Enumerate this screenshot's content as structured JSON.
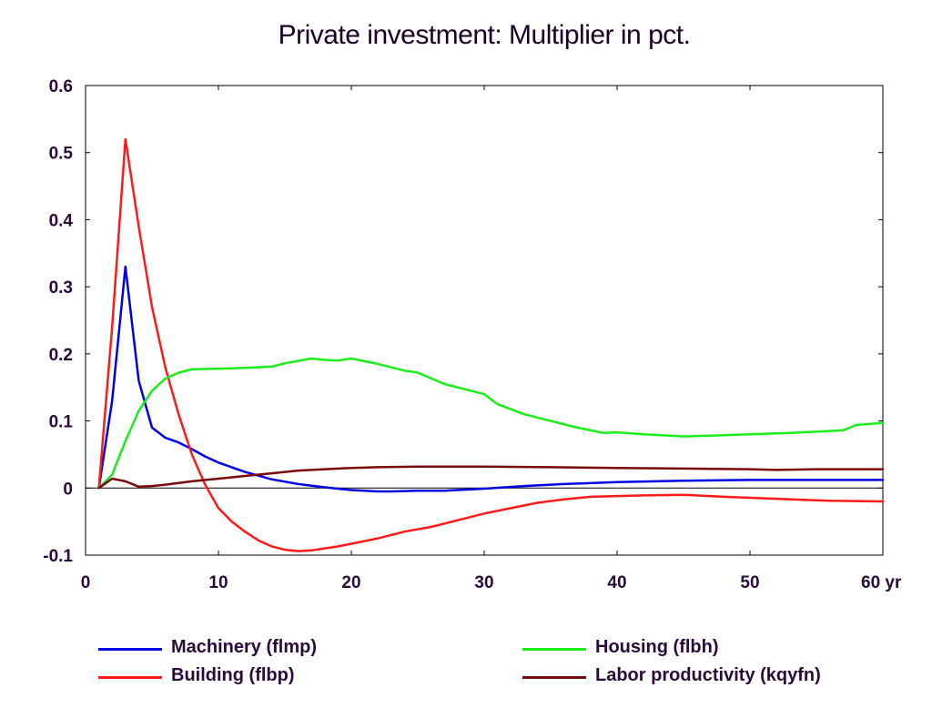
{
  "chart_data": {
    "type": "line",
    "title": "Private investment: Multiplier in pct.",
    "xlabel": "",
    "ylabel": "",
    "x_unit_label": "yr",
    "xlim": [
      0,
      60
    ],
    "ylim": [
      -0.1,
      0.6
    ],
    "x_ticks": [
      0,
      10,
      20,
      30,
      40,
      50,
      60
    ],
    "x_tick_labels": [
      "0",
      "10",
      "20",
      "30",
      "40",
      "50",
      "60 yr"
    ],
    "y_ticks": [
      -0.1,
      0,
      0.1,
      0.2,
      0.3,
      0.4,
      0.5,
      0.6
    ],
    "y_tick_labels": [
      "-0.1",
      "0",
      "0.1",
      "0.2",
      "0.3",
      "0.4",
      "0.5",
      "0.6"
    ],
    "grid": false,
    "zero_line": true,
    "legend_position": "bottom",
    "series": [
      {
        "name": "Machinery (flmp)",
        "color": "#0000e6",
        "x": [
          1,
          2,
          3,
          4,
          5,
          6,
          7,
          8,
          9,
          10,
          12,
          14,
          16,
          18,
          20,
          22,
          23,
          25,
          27,
          30,
          33,
          36,
          40,
          45,
          50,
          55,
          60
        ],
        "values": [
          0,
          0.13,
          0.33,
          0.16,
          0.09,
          0.075,
          0.068,
          0.058,
          0.047,
          0.038,
          0.024,
          0.013,
          0.006,
          0.001,
          -0.003,
          -0.005,
          -0.005,
          -0.004,
          -0.004,
          -0.001,
          0.003,
          0.006,
          0.009,
          0.011,
          0.012,
          0.012,
          0.012
        ]
      },
      {
        "name": "Building (flbp)",
        "color": "#ff1a1a",
        "x": [
          1,
          2,
          3,
          4,
          5,
          6,
          7,
          8,
          9,
          10,
          11,
          12,
          13,
          14,
          15,
          16,
          17,
          18,
          19,
          20,
          22,
          24,
          26,
          28,
          30,
          32,
          34,
          36,
          38,
          40,
          42,
          45,
          48,
          52,
          56,
          60
        ],
        "values": [
          0,
          0.24,
          0.52,
          0.39,
          0.27,
          0.18,
          0.11,
          0.05,
          0.005,
          -0.03,
          -0.05,
          -0.065,
          -0.078,
          -0.087,
          -0.092,
          -0.094,
          -0.093,
          -0.09,
          -0.087,
          -0.083,
          -0.075,
          -0.065,
          -0.058,
          -0.048,
          -0.038,
          -0.03,
          -0.022,
          -0.017,
          -0.013,
          -0.012,
          -0.011,
          -0.01,
          -0.013,
          -0.016,
          -0.019,
          -0.02
        ]
      },
      {
        "name": "Housing (flbh)",
        "color": "#1aee1a",
        "x": [
          1,
          2,
          3,
          4,
          5,
          6,
          7,
          8,
          10,
          12,
          14,
          15,
          17,
          18,
          19,
          20,
          22,
          24,
          25,
          27,
          30,
          31,
          33,
          35,
          37,
          39,
          40,
          42,
          45,
          47,
          50,
          53,
          56,
          57,
          58,
          60
        ],
        "values": [
          0,
          0.02,
          0.07,
          0.115,
          0.145,
          0.163,
          0.172,
          0.177,
          0.178,
          0.179,
          0.181,
          0.186,
          0.193,
          0.191,
          0.19,
          0.193,
          0.185,
          0.175,
          0.172,
          0.155,
          0.14,
          0.125,
          0.11,
          0.1,
          0.09,
          0.082,
          0.083,
          0.08,
          0.077,
          0.078,
          0.08,
          0.082,
          0.085,
          0.086,
          0.094,
          0.097
        ]
      },
      {
        "name": "Labor productivity (kqyfn)",
        "color": "#7a0a0a",
        "x": [
          1,
          2,
          3,
          4,
          5,
          6,
          8,
          10,
          12,
          14,
          16,
          18,
          20,
          22,
          25,
          30,
          35,
          40,
          45,
          50,
          52,
          55,
          60
        ],
        "values": [
          0,
          0.014,
          0.01,
          0.002,
          0.003,
          0.005,
          0.01,
          0.014,
          0.018,
          0.022,
          0.026,
          0.028,
          0.03,
          0.031,
          0.032,
          0.032,
          0.031,
          0.03,
          0.029,
          0.028,
          0.027,
          0.028,
          0.028
        ]
      }
    ]
  }
}
